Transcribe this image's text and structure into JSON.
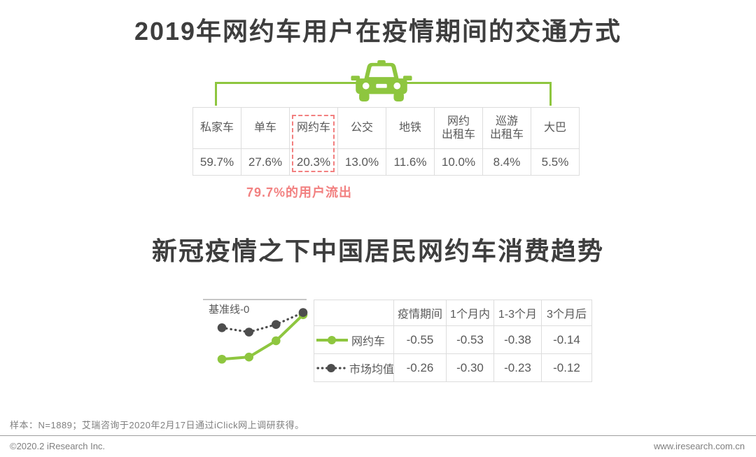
{
  "colors": {
    "green": "#8EC63F",
    "red": "#F28080",
    "dark_dot": "#4D4D4D",
    "title_text": "#3E3E3E",
    "table_text": "#595959",
    "table_border": "#DDDDDD",
    "footer_text": "#7F7F7F"
  },
  "section1": {
    "title": "2019年网约车用户在疫情期间的交通方式",
    "annotation": "79.7%的用户流出"
  },
  "section2": {
    "title": "新冠疫情之下中国居民网约车消费趋势",
    "baseline_label": "基准线-0"
  },
  "transport_table": {
    "columns": [
      {
        "label": "私家车",
        "value": "59.7%"
      },
      {
        "label": "单车",
        "value": "27.6%"
      },
      {
        "label": "网约车",
        "value": "20.3%",
        "highlighted": true
      },
      {
        "label": "公交",
        "value": "13.0%"
      },
      {
        "label": "地铁",
        "value": "11.6%"
      },
      {
        "label": "网约\n出租车",
        "value": "10.0%"
      },
      {
        "label": "巡游\n出租车",
        "value": "8.4%"
      },
      {
        "label": "大巴",
        "value": "5.5%"
      }
    ]
  },
  "trend_table": {
    "headers": [
      "疫情期间",
      "1个月内",
      "1-3个月",
      "3个月后"
    ],
    "rows": [
      {
        "name": "网约车",
        "icon": "green-solid-line-marker",
        "values": [
          "-0.55",
          "-0.53",
          "-0.38",
          "-0.14"
        ]
      },
      {
        "name": "市场均值",
        "icon": "dark-dotted-line-marker",
        "values": [
          "-0.26",
          "-0.30",
          "-0.23",
          "-0.12"
        ]
      }
    ]
  },
  "chart_data": [
    {
      "type": "table",
      "title": "2019年网约车用户在疫情期间的交通方式",
      "categories": [
        "私家车",
        "单车",
        "网约车",
        "公交",
        "地铁",
        "网约出租车",
        "巡游出租车",
        "大巴"
      ],
      "values": [
        59.7,
        27.6,
        20.3,
        13.0,
        11.6,
        10.0,
        8.4,
        5.5
      ],
      "unit": "%",
      "highlighted_category": "网约车",
      "annotation": "79.7%的用户流出"
    },
    {
      "type": "line",
      "title": "新冠疫情之下中国居民网约车消费趋势",
      "baseline_label": "基准线-0",
      "baseline_value": 0,
      "categories": [
        "疫情期间",
        "1个月内",
        "1-3个月",
        "3个月后"
      ],
      "series": [
        {
          "name": "网约车",
          "color": "#8EC63F",
          "line_style": "solid",
          "values": [
            -0.55,
            -0.53,
            -0.38,
            -0.14
          ]
        },
        {
          "name": "市场均值",
          "color": "#4D4D4D",
          "line_style": "dotted",
          "values": [
            -0.26,
            -0.3,
            -0.23,
            -0.12
          ]
        }
      ],
      "ylim": [
        -0.7,
        0
      ],
      "grid": false,
      "legend_position": "table-left-column"
    }
  ],
  "footer": {
    "note": "样本：N=1889；艾瑞咨询于2020年2月17日通过iClick网上调研获得。",
    "copyright": "©2020.2 iResearch Inc.",
    "website": "www.iresearch.com.cn"
  }
}
